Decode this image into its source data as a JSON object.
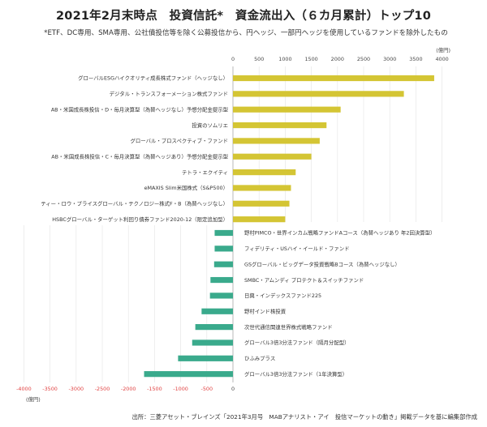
{
  "title": "2021年2月末時点　投資信託*　資金流出入（６カ月累計）トップ10",
  "subtitle": "*ETF、DC専用、SMA専用、公社債投信等を除く公募投信から、円ヘッジ、一部円ヘッジを使用しているファンドを除外したもの",
  "source": "出所：三菱アセット・ブレインズ「2021年3月号　MABアナリスト・アイ　投信マーケットの動き」掲載データを基に編集部作成",
  "colors": {
    "inflow": "#d4c534",
    "outflow": "#3aaa8c",
    "negative_tick": "#e04040"
  },
  "chart_data": {
    "type": "bar",
    "orientation": "horizontal",
    "unit": "(億円)",
    "top_axis": {
      "ticks": [
        0,
        500,
        1000,
        1500,
        2000,
        2500,
        3000,
        3500,
        4000
      ],
      "unit": "(億円)"
    },
    "bottom_axis": {
      "ticks": [
        -4000,
        -3500,
        -3000,
        -2500,
        -2000,
        -1500,
        -1000,
        -500,
        0
      ],
      "unit": "(億円)"
    },
    "inflows": [
      {
        "label": "グローバルESGハイクオリティ成長株式ファンド（ヘッジなし）",
        "value": 3850
      },
      {
        "label": "デジタル・トランスフォーメーション株式ファンド",
        "value": 3270
      },
      {
        "label": "AB・米国成長株投信・D・毎月決算型（為替ヘッジなし）予想分配金提示型",
        "value": 2060
      },
      {
        "label": "投資のソムリエ",
        "value": 1790
      },
      {
        "label": "グローバル・プロスペクティブ・ファンド",
        "value": 1660
      },
      {
        "label": "AB・米国成長株投信・C・毎月決算型（為替ヘッジあり）予想分配金提示型",
        "value": 1500
      },
      {
        "label": "テトラ・エクイティ",
        "value": 1200
      },
      {
        "label": "eMAXIS Slim米国株式（S&P500）",
        "value": 1110
      },
      {
        "label": "ティー・ロウ・プライスグローバル・テクノロジー株式F・B（為替ヘッジなし）",
        "value": 1080
      },
      {
        "label": "HSBCグローバル・ターゲット利回り債券ファンド2020-12（限定追加型）",
        "value": 1000
      }
    ],
    "outflows": [
      {
        "label": "野村PIMCO・世界インカム戦略ファンドAコース（為替ヘッジあり 年2回決算型）",
        "value": -350
      },
      {
        "label": "フィデリティ・USハイ・イールド・ファンド",
        "value": -350
      },
      {
        "label": "GSグローバル・ビッグデータ投資戦略Bコース（為替ヘッジなし）",
        "value": -360
      },
      {
        "label": "SMBC・アムンディ プロテクト＆スイッチファンド",
        "value": -430
      },
      {
        "label": "日興・インデックスファンド225",
        "value": -440
      },
      {
        "label": "野村インド株投資",
        "value": -600
      },
      {
        "label": "次世代通信関連世界株式戦略ファンド",
        "value": -720
      },
      {
        "label": "グローバル3倍3分法ファンド（隔月分配型）",
        "value": -780
      },
      {
        "label": "ひふみプラス",
        "value": -1050
      },
      {
        "label": "グローバル3倍3分法ファンド（1年決算型）",
        "value": -1700
      }
    ]
  }
}
